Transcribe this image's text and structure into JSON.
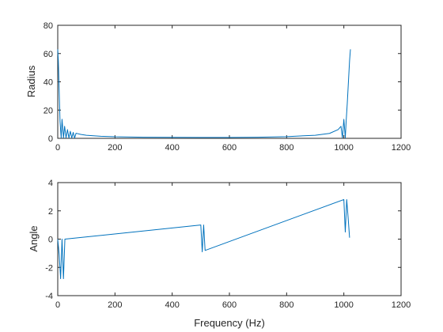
{
  "chart_data": [
    {
      "type": "line",
      "xlabel": "",
      "ylabel": "Radius",
      "xlim": [
        0,
        1200
      ],
      "ylim": [
        0,
        80
      ],
      "xticks": [
        "0",
        "200",
        "400",
        "600",
        "800",
        "1000",
        "1200"
      ],
      "yticks": [
        "0",
        "20",
        "40",
        "60",
        "80"
      ],
      "color": "#0072BD",
      "series": [
        {
          "x": [
            0,
            2,
            8,
            12,
            15,
            20,
            24,
            29,
            34,
            39,
            44,
            49,
            54,
            59,
            64,
            80,
            100,
            150,
            200,
            300,
            400,
            500,
            512,
            600,
            700,
            800,
            900,
            950,
            980,
            990,
            995,
            1000,
            1005,
            1008,
            1012,
            1016,
            1020,
            1023
          ],
          "y": [
            63.0,
            55.0,
            12.0,
            0.3,
            13.5,
            0.3,
            8.5,
            0.3,
            6.2,
            0.3,
            5.0,
            0.3,
            4.2,
            0.3,
            3.6,
            2.8,
            2.2,
            1.5,
            1.1,
            0.8,
            0.7,
            0.6,
            0.6,
            0.6,
            0.8,
            1.2,
            2.2,
            3.5,
            6.2,
            8.5,
            0.3,
            13.5,
            0.3,
            12.0,
            25.0,
            40.0,
            55.0,
            63.0
          ]
        }
      ]
    },
    {
      "type": "line",
      "xlabel": "Frequency (Hz)",
      "ylabel": "Angle",
      "xlim": [
        0,
        1200
      ],
      "ylim": [
        -4,
        4
      ],
      "xticks": [
        "0",
        "200",
        "400",
        "600",
        "800",
        "1000",
        "1200"
      ],
      "yticks": [
        "-4",
        "-2",
        "0",
        "2",
        "4"
      ],
      "color": "#0072BD",
      "series": [
        {
          "x": [
            0,
            5,
            10,
            15,
            20,
            25,
            500,
            505,
            510,
            515,
            1000,
            1005,
            1010,
            1015,
            1020
          ],
          "y": [
            0.0,
            -1.1,
            -2.8,
            0.0,
            -2.8,
            0.0,
            1.0,
            -0.9,
            1.0,
            -0.8,
            2.8,
            0.5,
            2.8,
            1.5,
            0.1
          ]
        }
      ]
    }
  ]
}
